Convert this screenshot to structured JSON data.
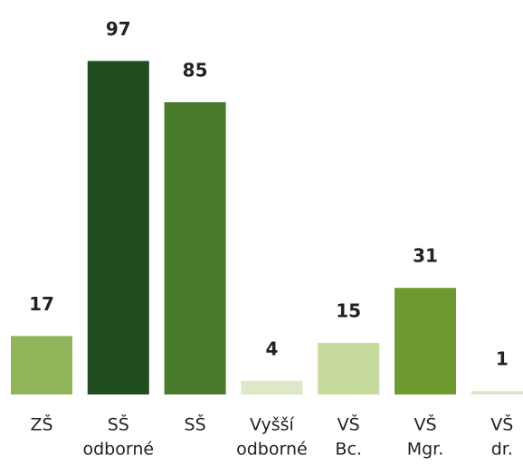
{
  "chart_data": {
    "type": "bar",
    "categories": [
      [
        "ZŠ"
      ],
      [
        "SŠ",
        "odborné"
      ],
      [
        "SŠ"
      ],
      [
        "Vyšší",
        "odborné"
      ],
      [
        "VŠ",
        "Bc."
      ],
      [
        "VŠ",
        "Mgr."
      ],
      [
        "VŠ",
        "dr."
      ]
    ],
    "values": [
      17,
      97,
      85,
      4,
      15,
      31,
      1
    ],
    "colors": [
      "#8fb558",
      "#1f4d1f",
      "#4a7a2b",
      "#dde9c6",
      "#c6da9b",
      "#6e9b31",
      "#dde9c6"
    ]
  }
}
